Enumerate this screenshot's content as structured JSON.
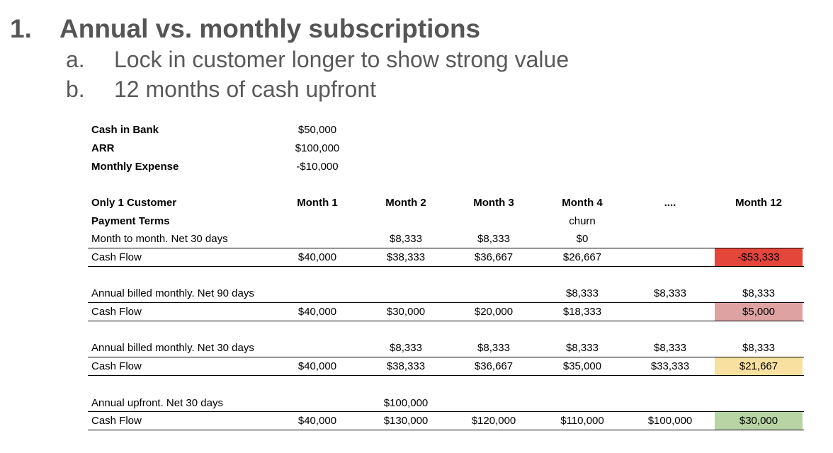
{
  "outline": {
    "number": "1.",
    "title": "Annual vs. monthly subscriptions",
    "points": [
      {
        "letter": "a.",
        "text": "Lock in customer longer to show strong value"
      },
      {
        "letter": "b.",
        "text": "12 months of cash upfront"
      }
    ]
  },
  "summary": [
    {
      "label": "Cash in Bank",
      "value": "$50,000"
    },
    {
      "label": "ARR",
      "value": "$100,000"
    },
    {
      "label": "Monthly Expense",
      "value": "-$10,000"
    }
  ],
  "table": {
    "headers": [
      "Only 1 Customer",
      "Month 1",
      "Month 2",
      "Month 3",
      "Month 4",
      "....",
      "Month 12"
    ],
    "subheader": "Payment Terms",
    "month4_note": "churn",
    "scenarios": [
      {
        "label": "Month to month. Net 30 days",
        "payments": [
          "",
          "$8,333",
          "$8,333",
          "$0",
          "",
          ""
        ],
        "cash_label": "Cash Flow",
        "cash": [
          "$40,000",
          "$38,333",
          "$36,667",
          "$26,667",
          "",
          "-$53,333"
        ],
        "highlight": "#e4463a"
      },
      {
        "label": "Annual billed monthly. Net 90 days",
        "payments": [
          "",
          "",
          "",
          "$8,333",
          "$8,333",
          "$8,333"
        ],
        "cash_label": "Cash Flow",
        "cash": [
          "$40,000",
          "$30,000",
          "$20,000",
          "$18,333",
          "",
          "$5,000"
        ],
        "highlight": "#dfa2a2"
      },
      {
        "label": "Annual billed monthly. Net 30 days",
        "payments": [
          "",
          "$8,333",
          "$8,333",
          "$8,333",
          "$8,333",
          "$8,333"
        ],
        "cash_label": "Cash Flow",
        "cash": [
          "$40,000",
          "$38,333",
          "$36,667",
          "$35,000",
          "$33,333",
          "$21,667"
        ],
        "highlight": "#f7e0a0"
      },
      {
        "label": "Annual upfront. Net 30 days",
        "payments": [
          "",
          "$100,000",
          "",
          "",
          "",
          ""
        ],
        "cash_label": "Cash Flow",
        "cash": [
          "$40,000",
          "$130,000",
          "$120,000",
          "$110,000",
          "$100,000",
          "$30,000"
        ],
        "highlight": "#b8d4a5"
      }
    ]
  }
}
